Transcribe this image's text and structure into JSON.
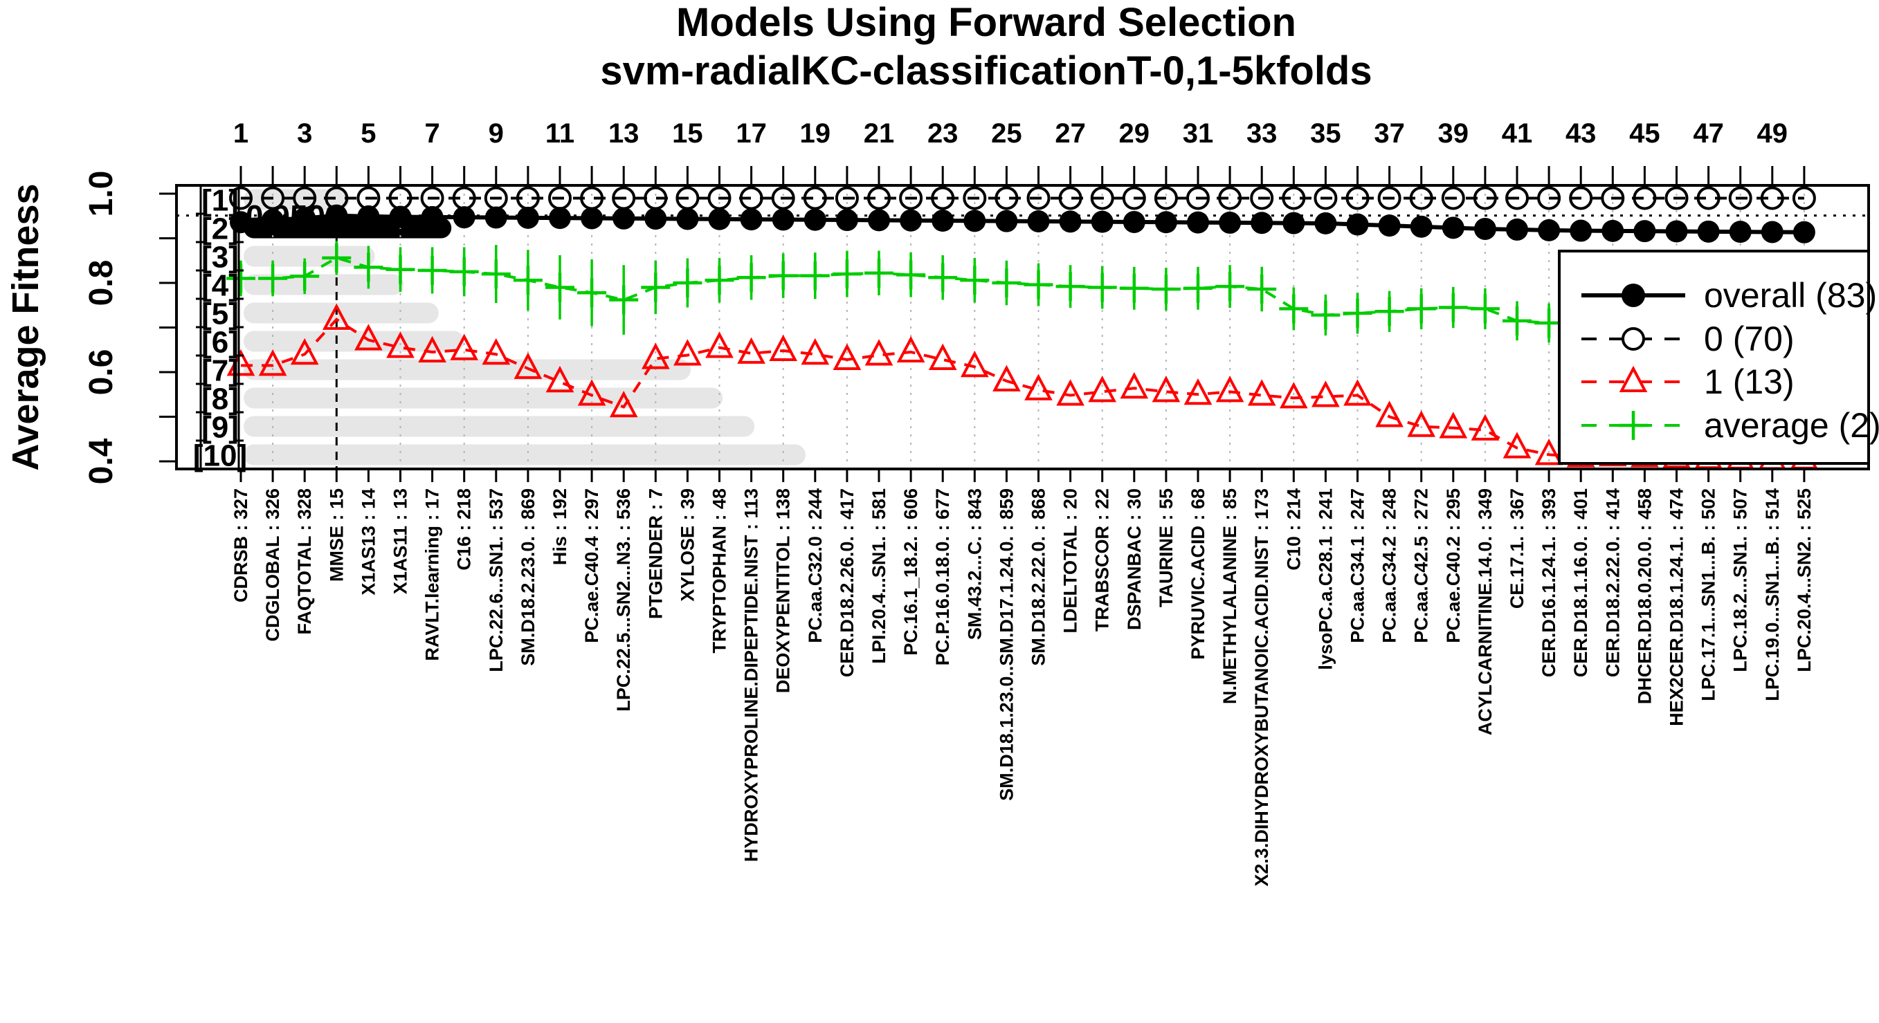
{
  "chart_data": {
    "type": "line",
    "title": "Models Using Forward Selection",
    "subtitle": "svm-radialKC-classificationT-0,1-5kfolds",
    "ylabel": "Average Fitness",
    "ylim": [
      0.355,
      1.02
    ],
    "y_ticks": [
      0.4,
      0.5,
      0.6,
      0.7,
      0.8,
      0.9,
      1.0
    ],
    "labeled_y_ticks": [
      "0.4",
      "0.6",
      "0.8",
      "1.0"
    ],
    "top_tick_labels": [
      1,
      3,
      5,
      7,
      9,
      11,
      13,
      15,
      17,
      19,
      21,
      23,
      25,
      27,
      29,
      31,
      33,
      35,
      37,
      39,
      41,
      43,
      45,
      47,
      49
    ],
    "grid": "dotted-vertical-at-even-positions",
    "legend_position": "bottom-right",
    "categories": [
      "CDRSB : 327",
      "CDGLOBAL : 326",
      "FAQTOTAL : 328",
      "MMSE : 15",
      "X1AS13 : 14",
      "X1AS11 : 13",
      "RAVLT.learning : 17",
      "C16 : 218",
      "LPC.22.6...SN1. : 537",
      "SM.D18.2.23.0. : 869",
      "His : 192",
      "PC.ae.C40.4 : 297",
      "LPC.22.5...SN2...N3. : 536",
      "PTGENDER : 7",
      "XYLOSE : 39",
      "TRYPTOPHAN : 48",
      "HYDROXYPROLINE.DIPEPTIDE.NIST : 113",
      "DEOXYPENTITOL : 138",
      "PC.aa.C32.0 : 244",
      "CER.D18.2.26.0. : 417",
      "LPI.20.4...SN1. : 581",
      "PC.16.1_18.2. : 606",
      "PC.P.16.0.18.0. : 677",
      "SM.43.2...C. : 843",
      "SM.D18.1.23.0..SM.D17.1.24.0. : 859",
      "SM.D18.2.22.0. : 868",
      "LDELTOTAL : 20",
      "TRABSCOR : 22",
      "DSPANBAC : 30",
      "TAURINE : 55",
      "PYRUVIC.ACID : 68",
      "N.METHYLALANINE : 85",
      "X2.3.DIHYDROXYBUTANOIC.ACID.NIST : 173",
      "C10 : 214",
      "lysoPC.a.C28.1 : 241",
      "PC.aa.C34.1 : 247",
      "PC.aa.C34.2 : 248",
      "PC.aa.C42.5 : 272",
      "PC.ae.C40.2 : 295",
      "ACYLCARNITINE.14.0. : 349",
      "CE.17.1. : 367",
      "CER.D16.1.24.1. : 393",
      "CER.D18.1.16.0. : 401",
      "CER.D18.2.22.0. : 414",
      "DHCER.D18.0.20.0. : 458",
      "HEX2CER.D18.1.24.1. : 474",
      "LPC.17.1...SN1...B. : 502",
      "LPC.18.2...SN1. : 507",
      "LPC.19.0...SN1...B. : 514",
      "LPC.20.4...SN2. : 525"
    ],
    "series": [
      {
        "name": "overall (83)",
        "color": "#000000",
        "marker": "filled-circle",
        "line": "solid",
        "values": [
          0.936,
          0.941,
          0.945,
          0.951,
          0.949,
          0.948,
          0.9475,
          0.947,
          0.9465,
          0.946,
          0.9455,
          0.945,
          0.9445,
          0.944,
          0.9435,
          0.943,
          0.9425,
          0.942,
          0.9415,
          0.941,
          0.9405,
          0.94,
          0.9395,
          0.939,
          0.9385,
          0.938,
          0.9375,
          0.937,
          0.9365,
          0.936,
          0.9355,
          0.935,
          0.9345,
          0.934,
          0.9335,
          0.931,
          0.9285,
          0.926,
          0.9235,
          0.921,
          0.9195,
          0.918,
          0.917,
          0.9165,
          0.916,
          0.9155,
          0.915,
          0.9145,
          0.914,
          0.9135
        ]
      },
      {
        "name": "0 (70)",
        "color": "#000000",
        "marker": "open-circle",
        "line": "dashed",
        "values": [
          0.99,
          0.99,
          0.99,
          0.99,
          0.99,
          0.99,
          0.99,
          0.99,
          0.99,
          0.99,
          0.99,
          0.99,
          0.99,
          0.99,
          0.99,
          0.99,
          0.99,
          0.99,
          0.99,
          0.99,
          0.99,
          0.99,
          0.99,
          0.99,
          0.99,
          0.99,
          0.99,
          0.99,
          0.99,
          0.99,
          0.99,
          0.99,
          0.99,
          0.99,
          0.99,
          0.99,
          0.99,
          0.99,
          0.99,
          0.99,
          0.99,
          0.99,
          0.99,
          0.99,
          0.99,
          0.99,
          0.99,
          0.99,
          0.99,
          0.99
        ]
      },
      {
        "name": "1 (13)",
        "color": "#ff0000",
        "marker": "open-triangle",
        "line": "dashed",
        "values": [
          0.615,
          0.615,
          0.64,
          0.718,
          0.672,
          0.655,
          0.645,
          0.65,
          0.64,
          0.608,
          0.578,
          0.548,
          0.522,
          0.63,
          0.638,
          0.655,
          0.642,
          0.648,
          0.64,
          0.628,
          0.638,
          0.645,
          0.628,
          0.612,
          0.58,
          0.56,
          0.548,
          0.556,
          0.564,
          0.556,
          0.55,
          0.556,
          0.548,
          0.542,
          0.545,
          0.548,
          0.5,
          0.478,
          0.475,
          0.47,
          0.43,
          0.415,
          0.41,
          0.412,
          0.41,
          0.408,
          0.406,
          0.405,
          0.404,
          0.405
        ]
      },
      {
        "name": "average (2)",
        "color": "#00cc00",
        "marker": "plus",
        "line": "dashed",
        "values": [
          0.81,
          0.81,
          0.815,
          0.856,
          0.835,
          0.83,
          0.828,
          0.825,
          0.82,
          0.806,
          0.79,
          0.778,
          0.762,
          0.79,
          0.8,
          0.806,
          0.812,
          0.816,
          0.816,
          0.82,
          0.822,
          0.818,
          0.812,
          0.806,
          0.8,
          0.796,
          0.792,
          0.79,
          0.788,
          0.786,
          0.788,
          0.792,
          0.786,
          0.742,
          0.728,
          0.732,
          0.736,
          0.742,
          0.745,
          0.742,
          0.715,
          0.71,
          0.712,
          0.71,
          0.71,
          0.708,
          0.706,
          0.705,
          0.702,
          0.7
        ],
        "error": [
          0.04,
          0.04,
          0.04,
          0.038,
          0.048,
          0.05,
          0.052,
          0.055,
          0.065,
          0.068,
          0.072,
          0.075,
          0.078,
          0.06,
          0.055,
          0.05,
          0.05,
          0.05,
          0.052,
          0.052,
          0.05,
          0.05,
          0.05,
          0.05,
          0.05,
          0.048,
          0.048,
          0.048,
          0.048,
          0.048,
          0.048,
          0.048,
          0.05,
          0.048,
          0.046,
          0.046,
          0.046,
          0.046,
          0.046,
          0.046,
          0.044,
          0.044,
          0.044,
          0.044,
          0.044,
          0.044,
          0.044,
          0.05,
          0.052,
          0.052
        ]
      }
    ],
    "annotations": {
      "max_fitness_text": "0.9509",
      "hline_fitness": 0.9509,
      "vline_position": 4,
      "row_labels": [
        "[1]",
        "[2]",
        "[3]",
        "[4]",
        "[5]",
        "[6]",
        "[7]",
        "[8]",
        "[9]",
        "[10]"
      ],
      "bars": [
        {
          "row": 1,
          "end_position": 4.4,
          "color": "#e6e6e6"
        },
        {
          "row": 2,
          "end_position": 7.6,
          "color": "#000000"
        },
        {
          "row": 3,
          "end_position": 5.2,
          "color": "#e6e6e6"
        },
        {
          "row": 4,
          "end_position": 6.1,
          "color": "#e6e6e6"
        },
        {
          "row": 5,
          "end_position": 7.2,
          "color": "#e6e6e6"
        },
        {
          "row": 6,
          "end_position": 8.0,
          "color": "#e6e6e6"
        },
        {
          "row": 7,
          "end_position": 15.1,
          "color": "#e6e6e6"
        },
        {
          "row": 8,
          "end_position": 16.1,
          "color": "#e6e6e6"
        },
        {
          "row": 9,
          "end_position": 17.1,
          "color": "#e6e6e6"
        },
        {
          "row": 10,
          "end_position": 18.7,
          "color": "#e6e6e6"
        }
      ]
    },
    "legend_entries": [
      "overall (83)",
      "0 (70)",
      "1 (13)",
      "average (2)"
    ]
  }
}
